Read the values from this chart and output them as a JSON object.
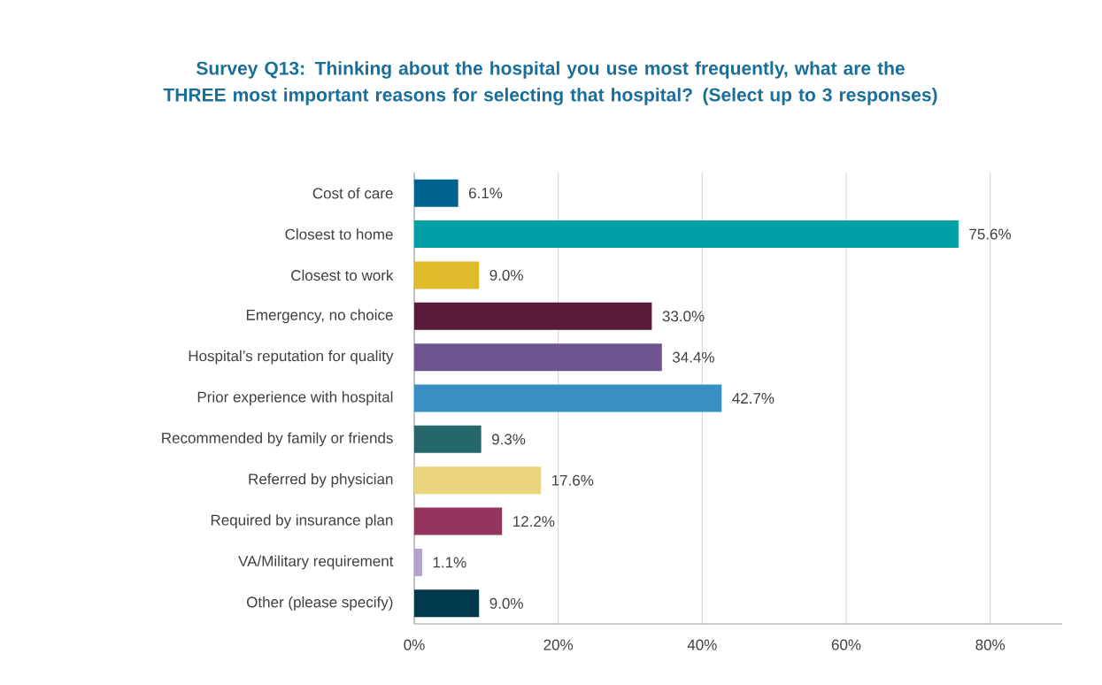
{
  "chart_data": {
    "type": "bar",
    "orientation": "horizontal",
    "title": "Survey Q13: Thinking about the hospital you use most frequently, what are the THREE most important reasons for selecting that hospital? (Select up to 3 responses)",
    "categories": [
      "Cost of care",
      "Closest to home",
      "Closest to work",
      "Emergency, no choice",
      "Hospital’s reputation for quality",
      "Prior experience with hospital",
      "Recommended by family or friends",
      "Referred by physician",
      "Required by insurance plan",
      "VA/Military requirement",
      "Other (please specify)"
    ],
    "values": [
      6.1,
      75.6,
      9.0,
      33.0,
      34.4,
      42.7,
      9.3,
      17.6,
      12.2,
      1.1,
      9.0
    ],
    "value_labels": [
      "6.1%",
      "75.6%",
      "9.0%",
      "33.0%",
      "34.4%",
      "42.7%",
      "9.3%",
      "17.6%",
      "12.2%",
      "1.1%",
      "9.0%"
    ],
    "colors": [
      "#00628f",
      "#00a0a6",
      "#dfba2a",
      "#5a1a3a",
      "#6e5590",
      "#3a8fc2",
      "#26686a",
      "#ead57e",
      "#94355d",
      "#b3a2cf",
      "#00384e"
    ],
    "xlim": [
      0,
      90
    ],
    "xticks": [
      {
        "value": 0,
        "label": "0%"
      },
      {
        "value": 20,
        "label": "20%"
      },
      {
        "value": 40,
        "label": "40%"
      },
      {
        "value": 60,
        "label": "60%"
      },
      {
        "value": 80,
        "label": "80%"
      }
    ],
    "grid": "x"
  }
}
